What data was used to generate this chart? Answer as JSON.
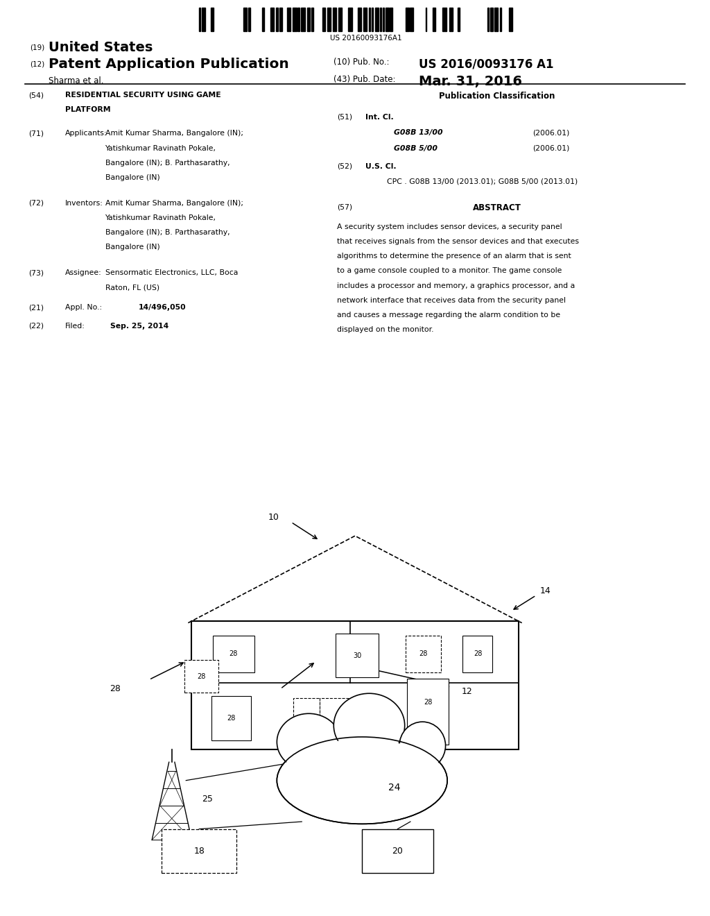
{
  "background_color": "#ffffff",
  "barcode_text": "US 20160093176A1",
  "header": {
    "country_label": "(19)",
    "country": "United States",
    "pub_type_label": "(12)",
    "pub_type": "Patent Application Publication",
    "inventor": "Sharma et al.",
    "pub_no_label": "(10) Pub. No.:",
    "pub_no": "US 2016/0093176 A1",
    "pub_date_label": "(43) Pub. Date:",
    "pub_date": "Mar. 31, 2016"
  },
  "left_col": {
    "title_label": "(54)",
    "title_line1": "RESIDENTIAL SECURITY USING GAME",
    "title_line2": "PLATFORM",
    "applicants_label": "(71)",
    "applicants_key": "Applicants:",
    "inventors_label": "(72)",
    "inventors_key": "Inventors:",
    "assignee_label": "(73)",
    "assignee_key": "Assignee:",
    "appl_label": "(21)",
    "appl_key": "Appl. No.:",
    "appl_val": "14/496,050",
    "filed_label": "(22)",
    "filed_key": "Filed:",
    "filed_val": "Sep. 25, 2014"
  },
  "right_col": {
    "pub_class_title": "Publication Classification",
    "int_cl_label": "(51)",
    "int_cl_key": "Int. Cl.",
    "int_cl_1_code": "G08B 13/00",
    "int_cl_1_year": "(2006.01)",
    "int_cl_2_code": "G08B 5/00",
    "int_cl_2_year": "(2006.01)",
    "us_cl_label": "(52)",
    "us_cl_key": "U.S. Cl.",
    "cpc_prefix": "CPC . ",
    "cpc_code1": "G08B 13/00",
    "cpc_year1": " (2013.01); ",
    "cpc_code2": "G08B 5/00",
    "cpc_year2": " (2013.01)",
    "abstract_label": "(57)",
    "abstract_title": "ABSTRACT",
    "abstract_lines": [
      "A security system includes sensor devices, a security panel",
      "that receives signals from the sensor devices and that executes",
      "algorithms to determine the presence of an alarm that is sent",
      "to a game console coupled to a monitor. The game console",
      "includes a processor and memory, a graphics processor, and a",
      "network interface that receives data from the security panel",
      "and causes a message regarding the alarm condition to be",
      "displayed on the monitor."
    ]
  }
}
